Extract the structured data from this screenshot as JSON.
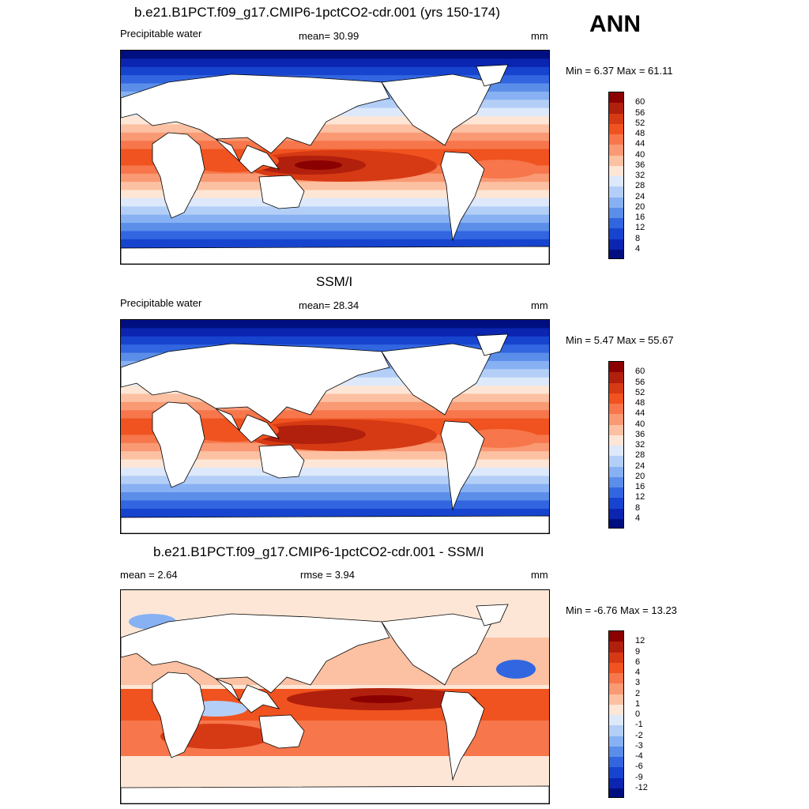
{
  "season": "ANN",
  "panels": [
    {
      "title": "b.e21.B1PCT.f09_g17.CMIP6-1pctCO2-cdr.001 (yrs 150-174)",
      "left": "Precipitable water",
      "center": "mean=  30.99",
      "units": "mm",
      "minmax": "Min =   6.37 Max =  61.11",
      "palette": "abs",
      "bounds": {
        "lat_scale": 1.0
      }
    },
    {
      "title": "SSM/I",
      "left": "Precipitable water",
      "center": "mean=  28.34",
      "units": "mm",
      "minmax": "Min =   5.47 Max =  55.67",
      "palette": "abs",
      "bounds": {
        "lat_scale": 0.9
      }
    },
    {
      "title": "b.e21.B1PCT.f09_g17.CMIP6-1pctCO2-cdr.001 - SSM/I",
      "left": "mean =   2.64",
      "center": "rmse =   3.94",
      "units": "mm",
      "minmax": "Min =  -6.76 Max =  13.23",
      "palette": "diff",
      "bounds": {
        "lat_scale": 1.0
      }
    }
  ],
  "colorbars": {
    "abs": {
      "labels": [
        "60",
        "56",
        "52",
        "48",
        "44",
        "40",
        "36",
        "32",
        "28",
        "24",
        "20",
        "16",
        "12",
        "8",
        "4"
      ],
      "colors": [
        "#8b0000",
        "#b1200c",
        "#d63a14",
        "#f0531f",
        "#f7764c",
        "#f99a74",
        "#fcc0a2",
        "#fde6d6",
        "#dde9fb",
        "#b4cff7",
        "#87b1f2",
        "#5a8ee9",
        "#3266e0",
        "#1744cf",
        "#0b25b0",
        "#000f80"
      ]
    },
    "diff": {
      "labels": [
        "12",
        "9",
        "6",
        "4",
        "3",
        "2",
        "1",
        "0",
        "-1",
        "-2",
        "-3",
        "-4",
        "-6",
        "-9",
        "-12"
      ],
      "colors": [
        "#8b0000",
        "#b1200c",
        "#d63a14",
        "#f0531f",
        "#f7764c",
        "#f99a74",
        "#fcc0a2",
        "#fde6d6",
        "#dde9fb",
        "#b4cff7",
        "#87b1f2",
        "#5a8ee9",
        "#3266e0",
        "#1744cf",
        "#0b25b0",
        "#000f80"
      ]
    }
  }
}
